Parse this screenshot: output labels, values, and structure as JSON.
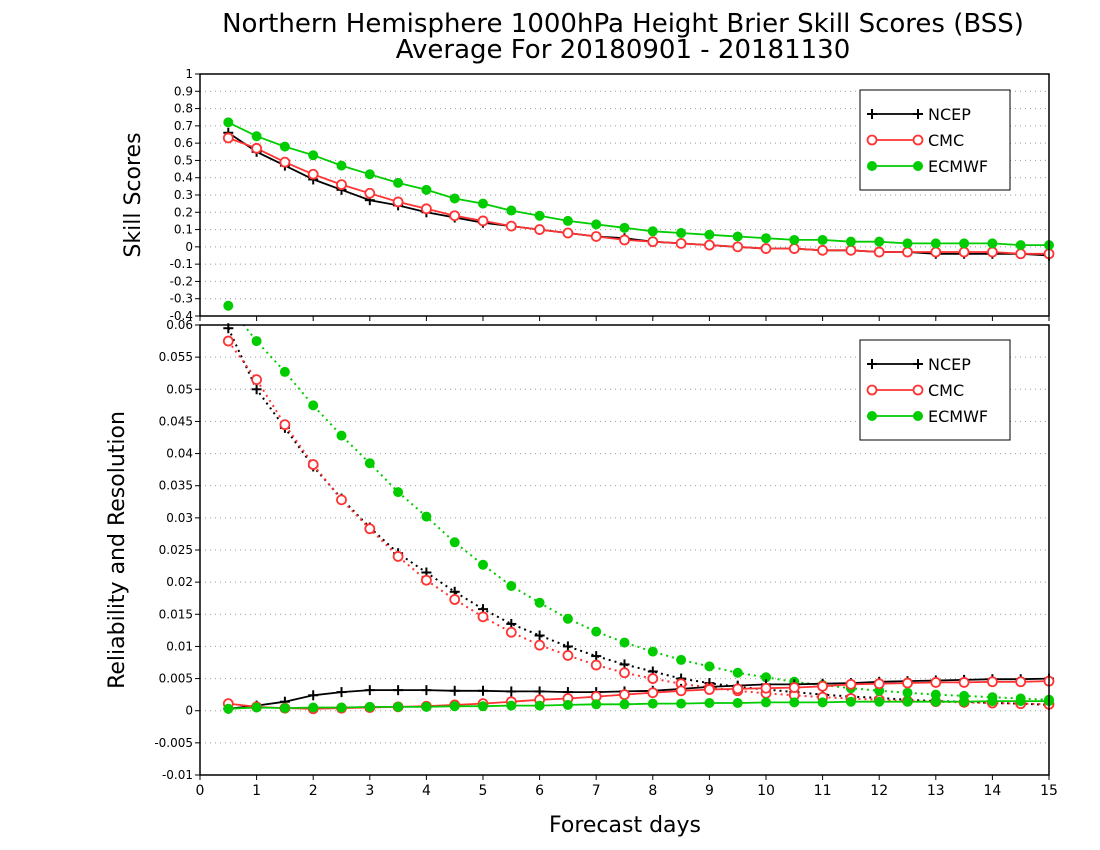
{
  "chart_data": [
    {
      "type": "line",
      "title": "Northern Hemisphere 1000hPa Height Brier Skill Scores (BSS)",
      "subtitle": "Average For 20180901 - 20181130",
      "xlabel": "",
      "ylabel": "Skill Scores",
      "xlim": [
        0,
        15
      ],
      "ylim": [
        -0.4,
        1
      ],
      "y_ticks": [
        -0.4,
        -0.3,
        -0.2,
        -0.1,
        0,
        0.1,
        0.2,
        0.3,
        0.4,
        0.5,
        0.6,
        0.7,
        0.8,
        0.9,
        1
      ],
      "y_tick_labels": [
        "-0.4",
        "-0.3",
        "-0.2",
        "-0.1",
        "0",
        "0.1",
        "0.2",
        "0.3",
        "0.4",
        "0.5",
        "0.6",
        "0.7",
        "0.8",
        "0.9",
        "1"
      ],
      "grid": "horizontal dotted",
      "legend_position": "top-right",
      "x": [
        0.5,
        1,
        1.5,
        2,
        2.5,
        3,
        3.5,
        4,
        4.5,
        5,
        5.5,
        6,
        6.5,
        7,
        7.5,
        8,
        8.5,
        9,
        9.5,
        10,
        10.5,
        11,
        11.5,
        12,
        12.5,
        13,
        13.5,
        14,
        14.5,
        15
      ],
      "series": [
        {
          "name": "NCEP",
          "color": "#000000",
          "marker": "plus",
          "values": [
            0.66,
            0.55,
            0.47,
            0.39,
            0.33,
            0.27,
            0.24,
            0.2,
            0.17,
            0.14,
            0.12,
            0.1,
            0.08,
            0.06,
            0.05,
            0.03,
            0.02,
            0.01,
            0.0,
            -0.01,
            -0.01,
            -0.02,
            -0.02,
            -0.03,
            -0.03,
            -0.04,
            -0.04,
            -0.04,
            -0.04,
            -0.05
          ]
        },
        {
          "name": "CMC",
          "color": "#ff3333",
          "marker": "open-circle",
          "values": [
            0.63,
            0.57,
            0.49,
            0.42,
            0.36,
            0.31,
            0.26,
            0.22,
            0.18,
            0.15,
            0.12,
            0.1,
            0.08,
            0.06,
            0.04,
            0.03,
            0.02,
            0.01,
            0.0,
            -0.01,
            -0.01,
            -0.02,
            -0.02,
            -0.03,
            -0.03,
            -0.03,
            -0.03,
            -0.03,
            -0.04,
            -0.04
          ]
        },
        {
          "name": "ECMWF",
          "color": "#00cc00",
          "marker": "filled-circle",
          "values": [
            0.72,
            0.64,
            0.58,
            0.53,
            0.47,
            0.42,
            0.37,
            0.33,
            0.28,
            0.25,
            0.21,
            0.18,
            0.15,
            0.13,
            0.11,
            0.09,
            0.08,
            0.07,
            0.06,
            0.05,
            0.04,
            0.04,
            0.03,
            0.03,
            0.02,
            0.02,
            0.02,
            0.02,
            0.01,
            0.01
          ]
        }
      ]
    },
    {
      "type": "line",
      "title": "",
      "xlabel": "Forecast days",
      "ylabel": "Reliability and Resolution",
      "xlim": [
        0,
        15
      ],
      "ylim": [
        -0.01,
        0.06
      ],
      "x_ticks": [
        0,
        1,
        2,
        3,
        4,
        5,
        6,
        7,
        8,
        9,
        10,
        11,
        12,
        13,
        14,
        15
      ],
      "x_tick_labels": [
        "0",
        "1",
        "2",
        "3",
        "4",
        "5",
        "6",
        "7",
        "8",
        "9",
        "10",
        "11",
        "12",
        "13",
        "14",
        "15"
      ],
      "y_ticks": [
        -0.01,
        -0.005,
        0,
        0.005,
        0.01,
        0.015,
        0.02,
        0.025,
        0.03,
        0.035,
        0.04,
        0.045,
        0.05,
        0.055,
        0.06
      ],
      "y_tick_labels": [
        "-0.01",
        "-0.005",
        "0",
        "0.005",
        "0.01",
        "0.015",
        "0.02",
        "0.025",
        "0.03",
        "0.035",
        "0.04",
        "0.045",
        "0.05",
        "0.055",
        "0.06"
      ],
      "grid": "horizontal dotted",
      "legend_position": "top-right",
      "x": [
        0.5,
        1,
        1.5,
        2,
        2.5,
        3,
        3.5,
        4,
        4.5,
        5,
        5.5,
        6,
        6.5,
        7,
        7.5,
        8,
        8.5,
        9,
        9.5,
        10,
        10.5,
        11,
        11.5,
        12,
        12.5,
        13,
        13.5,
        14,
        14.5,
        15
      ],
      "series": [
        {
          "name": "NCEP",
          "color": "#000000",
          "marker": "plus",
          "line": "dotted",
          "values": [
            0.0595,
            0.05,
            0.044,
            0.038,
            0.033,
            0.0285,
            0.0245,
            0.0215,
            0.0185,
            0.0158,
            0.0135,
            0.0117,
            0.01,
            0.0085,
            0.0072,
            0.0061,
            0.005,
            0.0043,
            0.0037,
            0.0033,
            0.0029,
            0.0025,
            0.0022,
            0.002,
            0.0017,
            0.0015,
            0.0014,
            0.0012,
            0.0011,
            0.0009
          ]
        },
        {
          "name": "CMC",
          "color": "#ff3333",
          "marker": "open-circle",
          "line": "dotted",
          "values": [
            0.0575,
            0.0515,
            0.0445,
            0.0383,
            0.0328,
            0.0283,
            0.024,
            0.0203,
            0.0173,
            0.0146,
            0.0122,
            0.0102,
            0.0086,
            0.0071,
            0.0059,
            0.005,
            0.0042,
            0.0036,
            0.0031,
            0.0027,
            0.0024,
            0.0021,
            0.0019,
            0.0017,
            0.0015,
            0.0014,
            0.0013,
            0.0012,
            0.0011,
            0.001
          ]
        },
        {
          "name": "ECMWF",
          "color": "#00cc00",
          "marker": "filled-circle",
          "line": "dotted",
          "values": [
            0.063,
            0.0575,
            0.0527,
            0.0475,
            0.0428,
            0.0385,
            0.034,
            0.0302,
            0.0262,
            0.0227,
            0.0194,
            0.0168,
            0.0143,
            0.0123,
            0.0106,
            0.0092,
            0.0079,
            0.0069,
            0.0059,
            0.0052,
            0.0045,
            0.004,
            0.0035,
            0.0031,
            0.0028,
            0.0025,
            0.0023,
            0.0021,
            0.0019,
            0.0017
          ]
        },
        {
          "name": "NCEP",
          "color": "#000000",
          "marker": "plus",
          "line": "solid",
          "values": [
            0.0003,
            0.0008,
            0.0014,
            0.0024,
            0.0029,
            0.0032,
            0.0032,
            0.0032,
            0.0031,
            0.0031,
            0.003,
            0.003,
            0.0029,
            0.0029,
            0.003,
            0.0031,
            0.0034,
            0.0037,
            0.0039,
            0.0041,
            0.0041,
            0.0042,
            0.0043,
            0.0045,
            0.0046,
            0.0047,
            0.0048,
            0.0049,
            0.0049,
            0.005
          ]
        },
        {
          "name": "CMC",
          "color": "#ff3333",
          "marker": "open-circle",
          "line": "solid",
          "values": [
            0.0011,
            0.0006,
            0.0004,
            0.0003,
            0.0004,
            0.0005,
            0.0006,
            0.0007,
            0.0009,
            0.0011,
            0.0014,
            0.0017,
            0.0019,
            0.0022,
            0.0025,
            0.0028,
            0.0031,
            0.0033,
            0.0034,
            0.0035,
            0.0036,
            0.0038,
            0.0041,
            0.0042,
            0.0043,
            0.0044,
            0.0044,
            0.0045,
            0.0045,
            0.0046
          ]
        },
        {
          "name": "ECMWF",
          "color": "#00cc00",
          "marker": "filled-circle",
          "line": "solid",
          "values": [
            0.0003,
            0.0005,
            0.0004,
            0.0005,
            0.0005,
            0.0006,
            0.0006,
            0.0006,
            0.0007,
            0.0007,
            0.0008,
            0.0008,
            0.0009,
            0.001,
            0.001,
            0.0011,
            0.0011,
            0.0012,
            0.0012,
            0.0013,
            0.0013,
            0.0013,
            0.0014,
            0.0014,
            0.0014,
            0.0014,
            0.0014,
            0.0015,
            0.0015,
            0.0015
          ]
        }
      ]
    }
  ],
  "legend": {
    "entries": [
      {
        "name": "NCEP",
        "color": "#000000",
        "marker": "plus"
      },
      {
        "name": "CMC",
        "color": "#ff3333",
        "marker": "open-circle"
      },
      {
        "name": "ECMWF",
        "color": "#00cc00",
        "marker": "filled-circle"
      }
    ]
  }
}
